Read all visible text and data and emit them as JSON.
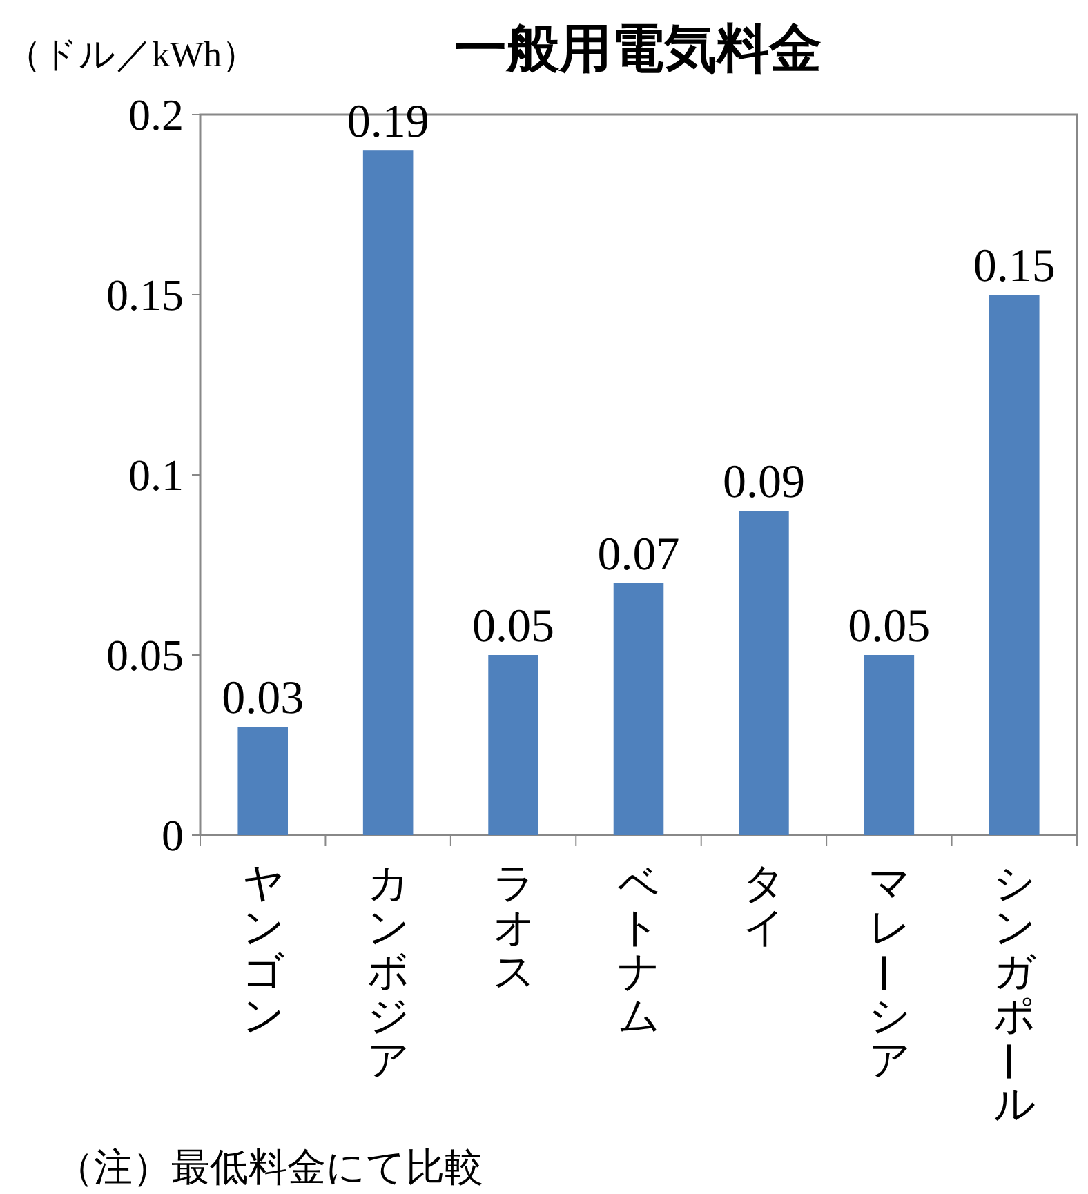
{
  "chart_data": {
    "type": "bar",
    "title": "一般用電気料金",
    "ylabel": "（ドル／kWh）",
    "categories": [
      "ヤンゴン",
      "カンボジア",
      "ラオス",
      "ベトナム",
      "タイ",
      "マレーシア",
      "シンガポール"
    ],
    "values": [
      0.03,
      0.19,
      0.05,
      0.07,
      0.09,
      0.05,
      0.15
    ],
    "color": "#4f81bd",
    "ylim": [
      0,
      0.2
    ],
    "yticks": [
      0,
      0.05,
      0.1,
      0.15,
      0.2
    ],
    "data_labels": true,
    "grid": false,
    "annotations": [
      "（注）最低料金にて比較"
    ]
  }
}
